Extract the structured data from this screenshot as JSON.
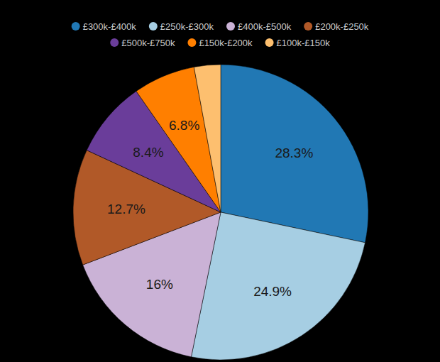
{
  "chart_data": {
    "type": "pie",
    "categories": [
      "£300k-£400k",
      "£250k-£300k",
      "£400k-£500k",
      "£200k-£250k",
      "£500k-£750k",
      "£150k-£200k",
      "£100k-£150k"
    ],
    "values": [
      28.3,
      24.9,
      16,
      12.7,
      8.4,
      6.8,
      2.9
    ],
    "value_labels": [
      "28.3%",
      "24.9%",
      "16%",
      "12.7%",
      "8.4%",
      "6.8%",
      null
    ],
    "colors": [
      "#2178b4",
      "#a6cee3",
      "#cab2d6",
      "#b15928",
      "#6a3d9a",
      "#ff7f00",
      "#fdbf6f"
    ],
    "data_labels": true,
    "legend": "top"
  }
}
